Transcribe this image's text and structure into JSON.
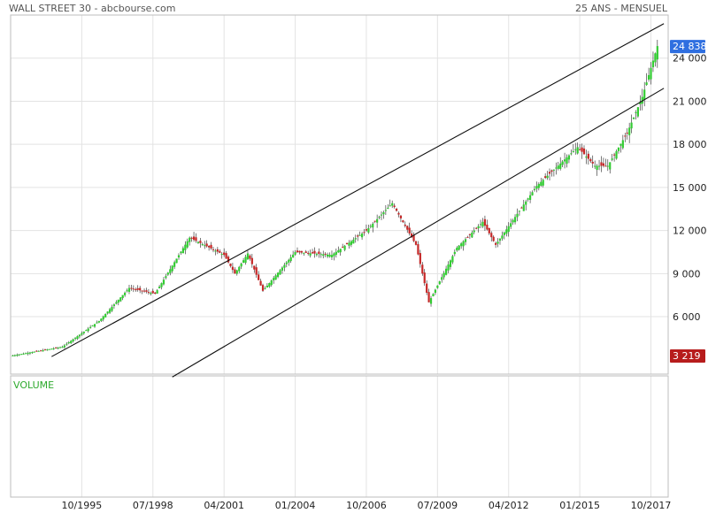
{
  "header": {
    "title": "WALL STREET 30 - abcbourse.com",
    "period": "25 ANS - MENSUEL"
  },
  "volume_label": "VOLUME",
  "chart_data": {
    "type": "candlestick",
    "title": "WALL STREET 30 - abcbourse.com",
    "subtitle": "25 ANS - MENSUEL",
    "y_ticks": [
      "24 000",
      "21 000",
      "18 000",
      "15 000",
      "12 000",
      "9 000",
      "6 000"
    ],
    "y_tick_values": [
      24000,
      21000,
      18000,
      15000,
      12000,
      9000,
      6000
    ],
    "ylim": [
      2000,
      27000
    ],
    "x_ticks": [
      "10/1995",
      "07/1998",
      "04/2001",
      "01/2004",
      "10/2006",
      "07/2009",
      "04/2012",
      "01/2015",
      "10/2017"
    ],
    "x_tick_values": [
      "1995-10",
      "1998-07",
      "2001-04",
      "2004-01",
      "2006-10",
      "2009-07",
      "2012-04",
      "2015-01",
      "2017-10"
    ],
    "xlim": [
      "1993-01",
      "2018-06"
    ],
    "last_value": "24 838",
    "last_value_num": 24838,
    "min_value": "3 219",
    "min_value_num": 3219,
    "up_color": "#33cc33",
    "down_color": "#c62828",
    "last_label_color": "#2f6fe0",
    "min_label_color": "#b71c1c",
    "key_levels": [
      {
        "date": "1993-02",
        "value": 3300
      },
      {
        "date": "1995-01",
        "value": 3900
      },
      {
        "date": "1996-06",
        "value": 5700
      },
      {
        "date": "1997-08",
        "value": 8000
      },
      {
        "date": "1998-08",
        "value": 7600
      },
      {
        "date": "1999-12",
        "value": 11500
      },
      {
        "date": "2001-04",
        "value": 10300
      },
      {
        "date": "2001-09",
        "value": 9000
      },
      {
        "date": "2002-03",
        "value": 10400
      },
      {
        "date": "2002-10",
        "value": 7800
      },
      {
        "date": "2004-01",
        "value": 10500
      },
      {
        "date": "2005-06",
        "value": 10300
      },
      {
        "date": "2006-10",
        "value": 12000
      },
      {
        "date": "2007-10",
        "value": 13900
      },
      {
        "date": "2008-09",
        "value": 11000
      },
      {
        "date": "2009-03",
        "value": 7000
      },
      {
        "date": "2010-04",
        "value": 10800
      },
      {
        "date": "2011-04",
        "value": 12600
      },
      {
        "date": "2011-10",
        "value": 11000
      },
      {
        "date": "2013-05",
        "value": 15100
      },
      {
        "date": "2014-12",
        "value": 17800
      },
      {
        "date": "2015-08",
        "value": 16500
      },
      {
        "date": "2016-02",
        "value": 16500
      },
      {
        "date": "2016-11",
        "value": 18800
      },
      {
        "date": "2017-06",
        "value": 21300
      },
      {
        "date": "2018-01",
        "value": 24838
      }
    ],
    "trend_lines": [
      {
        "from": {
          "date": "1994-08",
          "value": 3219
        },
        "to": {
          "date": "2018-04",
          "value": 26400
        }
      },
      {
        "from": {
          "date": "1999-04",
          "value": 1800
        },
        "to": {
          "date": "2018-04",
          "value": 21900
        }
      }
    ]
  }
}
